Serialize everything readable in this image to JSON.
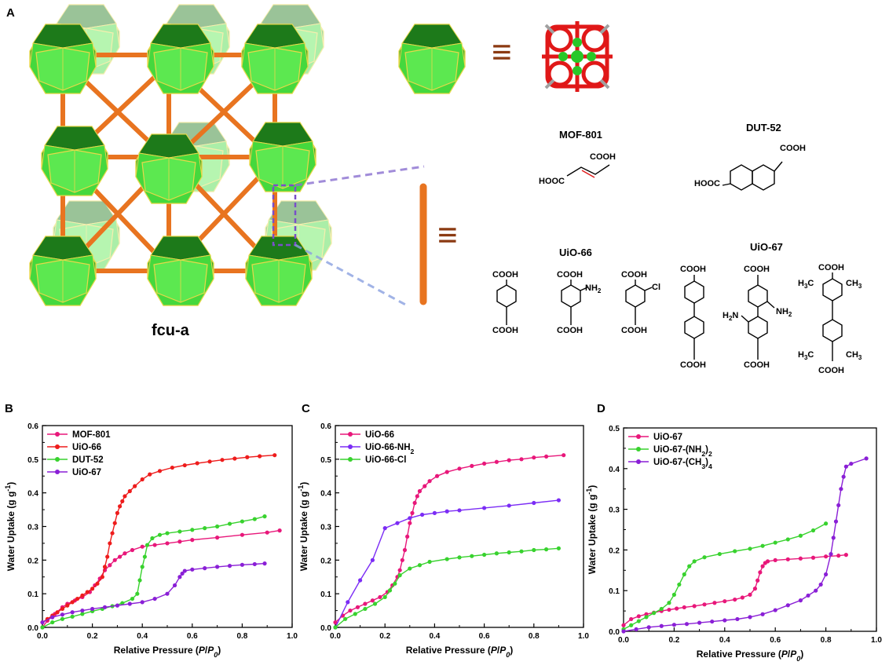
{
  "panel_labels": {
    "a": "A",
    "b": "B",
    "c": "C",
    "d": "D"
  },
  "structure_label": "fcu-a",
  "equiv_symbol": "≡",
  "ligands": {
    "mof801": {
      "name": "MOF-801",
      "cooh": "COOH",
      "hooc": "HOOC"
    },
    "dut52": {
      "name": "DUT-52",
      "cooh": "COOH",
      "hooc": "HOOC"
    },
    "uio66": {
      "name": "UiO-66",
      "cooh": "COOH",
      "nh2": "NH2",
      "cl": "Cl"
    },
    "uio67": {
      "name": "UiO-67",
      "cooh": "COOH",
      "nh2": "NH2",
      "h2n": "H2N",
      "ch3": "CH3",
      "h3c": "H3C"
    }
  },
  "colors": {
    "magenta": "#e8177a",
    "red": "#ee1c1c",
    "green": "#38d22e",
    "purple": "#8a1fd6",
    "violet": "#7b2cf5",
    "orange": "#f07a22",
    "polyhedron": "#3fd63a"
  },
  "chart_data": [
    {
      "panel": "B",
      "type": "line",
      "xlabel": "Relative Pressure (P/P0)",
      "ylabel": "Water Uptake (g g-1)",
      "xlim": [
        0.0,
        1.0
      ],
      "ylim": [
        0.0,
        0.6
      ],
      "xticks": [
        "0.0",
        "0.2",
        "0.4",
        "0.6",
        "0.8",
        "1.0"
      ],
      "yticks": [
        "0.0",
        "0.1",
        "0.2",
        "0.3",
        "0.4",
        "0.5",
        "0.6"
      ],
      "legend_position": "top-left",
      "series": [
        {
          "name": "MOF-801",
          "color": "#e8177a",
          "x": [
            0.0,
            0.02,
            0.05,
            0.08,
            0.1,
            0.13,
            0.16,
            0.19,
            0.21,
            0.23,
            0.25,
            0.27,
            0.29,
            0.31,
            0.33,
            0.36,
            0.4,
            0.45,
            0.5,
            0.55,
            0.6,
            0.7,
            0.8,
            0.9,
            0.95
          ],
          "y": [
            0.0,
            0.02,
            0.04,
            0.06,
            0.07,
            0.08,
            0.09,
            0.105,
            0.125,
            0.145,
            0.17,
            0.185,
            0.2,
            0.21,
            0.22,
            0.23,
            0.24,
            0.245,
            0.25,
            0.255,
            0.26,
            0.267,
            0.275,
            0.282,
            0.288
          ]
        },
        {
          "name": "UiO-66",
          "color": "#ee1c1c",
          "x": [
            0.0,
            0.02,
            0.04,
            0.06,
            0.08,
            0.1,
            0.12,
            0.14,
            0.16,
            0.18,
            0.2,
            0.22,
            0.24,
            0.25,
            0.26,
            0.27,
            0.28,
            0.29,
            0.3,
            0.31,
            0.32,
            0.33,
            0.35,
            0.37,
            0.4,
            0.43,
            0.47,
            0.52,
            0.57,
            0.62,
            0.67,
            0.72,
            0.77,
            0.82,
            0.87,
            0.93
          ],
          "y": [
            0.015,
            0.025,
            0.035,
            0.045,
            0.055,
            0.065,
            0.075,
            0.085,
            0.095,
            0.105,
            0.115,
            0.13,
            0.15,
            0.18,
            0.21,
            0.25,
            0.28,
            0.31,
            0.34,
            0.36,
            0.375,
            0.39,
            0.405,
            0.42,
            0.44,
            0.455,
            0.465,
            0.475,
            0.482,
            0.488,
            0.493,
            0.498,
            0.502,
            0.506,
            0.509,
            0.512
          ]
        },
        {
          "name": "DUT-52",
          "color": "#38d22e",
          "x": [
            0.0,
            0.04,
            0.08,
            0.12,
            0.16,
            0.2,
            0.24,
            0.28,
            0.32,
            0.36,
            0.38,
            0.39,
            0.4,
            0.41,
            0.42,
            0.44,
            0.47,
            0.5,
            0.55,
            0.6,
            0.65,
            0.7,
            0.75,
            0.8,
            0.85,
            0.89
          ],
          "y": [
            0.0,
            0.015,
            0.025,
            0.032,
            0.04,
            0.048,
            0.055,
            0.063,
            0.072,
            0.085,
            0.1,
            0.14,
            0.18,
            0.21,
            0.245,
            0.265,
            0.275,
            0.28,
            0.285,
            0.29,
            0.295,
            0.3,
            0.308,
            0.315,
            0.322,
            0.33
          ]
        },
        {
          "name": "UiO-67",
          "color": "#8a1fd6",
          "x": [
            0.0,
            0.04,
            0.08,
            0.12,
            0.16,
            0.2,
            0.25,
            0.3,
            0.35,
            0.4,
            0.45,
            0.5,
            0.53,
            0.55,
            0.56,
            0.57,
            0.6,
            0.65,
            0.7,
            0.75,
            0.8,
            0.85,
            0.89
          ],
          "y": [
            0.015,
            0.03,
            0.038,
            0.045,
            0.05,
            0.055,
            0.06,
            0.065,
            0.07,
            0.075,
            0.085,
            0.1,
            0.125,
            0.15,
            0.16,
            0.168,
            0.172,
            0.176,
            0.18,
            0.183,
            0.186,
            0.188,
            0.19
          ]
        }
      ]
    },
    {
      "panel": "C",
      "type": "line",
      "xlabel": "Relative Pressure (P/P0)",
      "ylabel": "Water Uptake (g g-1)",
      "xlim": [
        0.0,
        1.0
      ],
      "ylim": [
        0.0,
        0.6
      ],
      "xticks": [
        "0.0",
        "0.2",
        "0.4",
        "0.6",
        "0.8",
        "1.0"
      ],
      "yticks": [
        "0.0",
        "0.1",
        "0.2",
        "0.3",
        "0.4",
        "0.5",
        "0.6"
      ],
      "legend_position": "top-left",
      "series": [
        {
          "name": "UiO-66",
          "color": "#e8177a",
          "x": [
            0.0,
            0.03,
            0.06,
            0.09,
            0.12,
            0.15,
            0.18,
            0.21,
            0.23,
            0.25,
            0.26,
            0.27,
            0.28,
            0.29,
            0.3,
            0.31,
            0.32,
            0.33,
            0.34,
            0.36,
            0.38,
            0.41,
            0.45,
            0.5,
            0.55,
            0.6,
            0.65,
            0.7,
            0.75,
            0.8,
            0.85,
            0.92
          ],
          "y": [
            0.015,
            0.035,
            0.05,
            0.06,
            0.07,
            0.08,
            0.09,
            0.105,
            0.125,
            0.15,
            0.17,
            0.2,
            0.23,
            0.27,
            0.31,
            0.34,
            0.37,
            0.39,
            0.405,
            0.42,
            0.435,
            0.45,
            0.462,
            0.472,
            0.48,
            0.487,
            0.492,
            0.497,
            0.5,
            0.505,
            0.508,
            0.512
          ]
        },
        {
          "name": "UiO-66-NH2",
          "color": "#7b2cf5",
          "x": [
            0.0,
            0.05,
            0.1,
            0.15,
            0.2,
            0.25,
            0.3,
            0.35,
            0.4,
            0.45,
            0.5,
            0.6,
            0.7,
            0.8,
            0.9
          ],
          "y": [
            0.0,
            0.075,
            0.14,
            0.2,
            0.295,
            0.31,
            0.325,
            0.335,
            0.34,
            0.345,
            0.348,
            0.355,
            0.362,
            0.37,
            0.378
          ]
        },
        {
          "name": "UiO-66-Cl",
          "color": "#38d22e",
          "x": [
            0.0,
            0.04,
            0.08,
            0.12,
            0.16,
            0.2,
            0.22,
            0.24,
            0.26,
            0.3,
            0.34,
            0.38,
            0.45,
            0.5,
            0.55,
            0.6,
            0.65,
            0.7,
            0.75,
            0.8,
            0.85,
            0.9
          ],
          "y": [
            0.0,
            0.025,
            0.04,
            0.055,
            0.07,
            0.09,
            0.11,
            0.13,
            0.155,
            0.175,
            0.185,
            0.195,
            0.203,
            0.208,
            0.212,
            0.216,
            0.22,
            0.223,
            0.226,
            0.23,
            0.232,
            0.235
          ]
        }
      ]
    },
    {
      "panel": "D",
      "type": "line",
      "xlabel": "Relative Pressure (P/P0)",
      "ylabel": "Water Uptake (g g-1)",
      "xlim": [
        0.0,
        1.0
      ],
      "ylim": [
        0.0,
        0.5
      ],
      "xticks": [
        "0.0",
        "0.2",
        "0.4",
        "0.6",
        "0.8",
        "1.0"
      ],
      "yticks": [
        "0.0",
        "0.1",
        "0.2",
        "0.3",
        "0.4",
        "0.5"
      ],
      "legend_position": "top-left",
      "series": [
        {
          "name": "UiO-67",
          "color": "#e8177a",
          "x": [
            0.0,
            0.03,
            0.06,
            0.09,
            0.12,
            0.15,
            0.18,
            0.21,
            0.24,
            0.28,
            0.32,
            0.36,
            0.4,
            0.44,
            0.47,
            0.5,
            0.52,
            0.53,
            0.54,
            0.55,
            0.56,
            0.57,
            0.6,
            0.65,
            0.7,
            0.75,
            0.8,
            0.85,
            0.88
          ],
          "y": [
            0.015,
            0.03,
            0.037,
            0.042,
            0.046,
            0.05,
            0.053,
            0.056,
            0.059,
            0.062,
            0.066,
            0.07,
            0.074,
            0.078,
            0.083,
            0.09,
            0.105,
            0.125,
            0.145,
            0.16,
            0.168,
            0.172,
            0.175,
            0.177,
            0.179,
            0.181,
            0.184,
            0.186,
            0.188
          ]
        },
        {
          "name": "UiO-67-(NH2)2",
          "color": "#38d22e",
          "x": [
            0.0,
            0.03,
            0.06,
            0.09,
            0.12,
            0.15,
            0.18,
            0.2,
            0.22,
            0.24,
            0.26,
            0.28,
            0.32,
            0.38,
            0.44,
            0.5,
            0.55,
            0.6,
            0.65,
            0.7,
            0.75,
            0.8
          ],
          "y": [
            0.005,
            0.015,
            0.025,
            0.035,
            0.045,
            0.055,
            0.07,
            0.09,
            0.115,
            0.14,
            0.16,
            0.172,
            0.182,
            0.19,
            0.197,
            0.203,
            0.21,
            0.218,
            0.226,
            0.235,
            0.248,
            0.265
          ]
        },
        {
          "name": "UiO-67-(CH3)4",
          "color": "#8a1fd6",
          "x": [
            0.0,
            0.05,
            0.1,
            0.15,
            0.2,
            0.25,
            0.3,
            0.35,
            0.4,
            0.45,
            0.5,
            0.55,
            0.6,
            0.65,
            0.7,
            0.73,
            0.76,
            0.78,
            0.8,
            0.82,
            0.83,
            0.84,
            0.85,
            0.86,
            0.87,
            0.88,
            0.9,
            0.96
          ],
          "y": [
            0.0,
            0.005,
            0.01,
            0.013,
            0.016,
            0.018,
            0.021,
            0.024,
            0.027,
            0.03,
            0.035,
            0.042,
            0.052,
            0.064,
            0.076,
            0.088,
            0.1,
            0.115,
            0.14,
            0.19,
            0.23,
            0.27,
            0.31,
            0.35,
            0.38,
            0.405,
            0.412,
            0.425
          ]
        }
      ]
    }
  ]
}
